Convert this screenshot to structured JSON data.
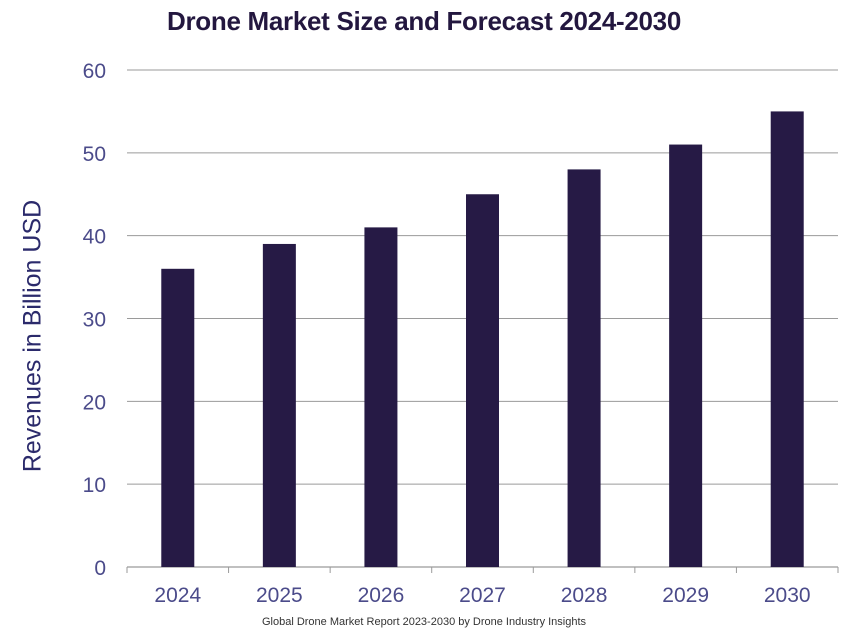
{
  "colors": {
    "bar": "#261a45",
    "grid": "#9a9a9a",
    "axis_text": "#4b4b8a",
    "title": "#23173f"
  },
  "chart_data": {
    "type": "bar",
    "title": "Drone Market Size and Forecast 2024-2030",
    "xlabel": "",
    "ylabel": "Revenues in Billion USD",
    "categories": [
      "2024",
      "2025",
      "2026",
      "2027",
      "2028",
      "2029",
      "2030"
    ],
    "values": [
      36,
      39,
      41,
      45,
      48,
      51,
      55
    ],
    "ylim": [
      0,
      60
    ],
    "yticks": [
      0,
      10,
      20,
      30,
      40,
      50,
      60
    ],
    "grid": true,
    "legend": "none",
    "footnote": "Global Drone Market Report 2023-2030 by Drone Industry Insights"
  }
}
